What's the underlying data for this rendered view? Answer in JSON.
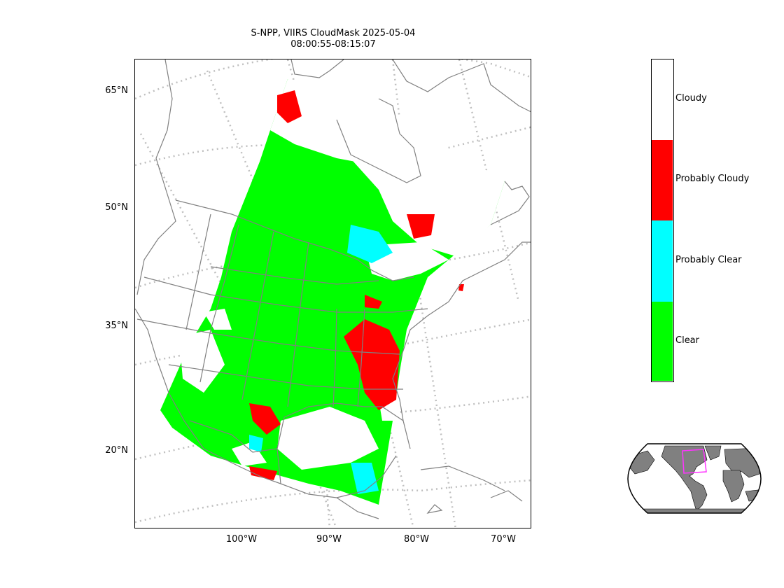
{
  "title": {
    "line1": "S-NPP, VIIRS CloudMask 2025-05-04",
    "line2": "08:00:55-08:15:07"
  },
  "latitude_labels": [
    "65°N",
    "50°N",
    "35°N",
    "20°N"
  ],
  "longitude_labels": [
    "100°W",
    "90°W",
    "80°W",
    "70°W"
  ],
  "legend": {
    "items": [
      {
        "label": "Cloudy",
        "color": "#ffffff"
      },
      {
        "label": "Probably Cloudy",
        "color": "#ff0000"
      },
      {
        "label": "Probably Clear",
        "color": "#00ffff"
      },
      {
        "label": "Clear",
        "color": "#00ff00"
      }
    ]
  },
  "colors": {
    "clear": "#00ff00",
    "probably_clear": "#00ffff",
    "probably_cloudy": "#ff0000",
    "cloudy": "#ffffff",
    "borders": "#808080",
    "graticule": "#bfbfbf",
    "overview_land": "#808080",
    "overview_extent": "#ff33ff"
  }
}
